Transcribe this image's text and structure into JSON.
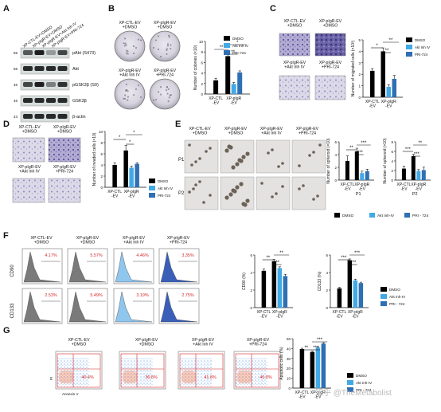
{
  "panel_labels": [
    "A",
    "B",
    "C",
    "D",
    "E",
    "F",
    "G"
  ],
  "colors": {
    "dmso": "#000000",
    "akt": "#41a9e6",
    "pri": "#2f6fb3",
    "blot_band": "#1f1f1f",
    "blot_bg": "#d6dcdc",
    "annotation_red": "#d62828"
  },
  "panel_a": {
    "lane_labels": [
      "XP-CTL-EV+DMSO",
      "XP-pIgR-EV+DMSO",
      "XP-pIgR-EV+Akt Inh IV",
      "XP-pIgR-EV+PRI-724"
    ],
    "bands": [
      "pAkt (S473)",
      "Akt",
      "pGSK3β (S9)",
      "GSK3β",
      "β-actin"
    ],
    "markers": [
      "55",
      "55",
      "46",
      "46",
      "43"
    ]
  },
  "legend": {
    "dmso": "DMSO",
    "akt": "Akt Inh IV",
    "akt_alt": "Akt Inh-IV",
    "pri": "PRI-724",
    "pri_alt": "PRI - 724"
  },
  "conditions": {
    "ctl_dmso": "XP-CTL-EV\n+DMSO",
    "pigr_dmso": "XP-pIgR-EV\n+DMSO",
    "pigr_akt": "XP-pIgR-EV\n+Akt Inh IV",
    "pigr_pri": "XP-pIgR-EV\n+PRI-724"
  },
  "group_labels": {
    "ctl": "XP-CTL\n-EV",
    "pigr": "XP-pIgR\n-EV"
  },
  "significance": {
    "two": "**",
    "one": "*",
    "three": "***"
  },
  "panel_e_rows": [
    "P1",
    "P2"
  ],
  "panel_f": {
    "markers": [
      "CD90",
      "CD133"
    ],
    "percents_cd90": [
      "4.17%",
      "5.57%",
      "4.46%",
      "3.35%"
    ],
    "percents_cd133": [
      "2.53%",
      "5.49%",
      "3.19%",
      "2.75%"
    ]
  },
  "panel_g": {
    "percents": [
      "40.4%",
      "36.8%",
      "41.8%",
      "45.8%"
    ],
    "axis_y": "PI",
    "axis_x": "Annexin V"
  },
  "watermark": "知乎 @TheMetabolist",
  "chart_data": [
    {
      "id": "B-colonies",
      "type": "bar",
      "ylabel": "Number of colonies (×10)",
      "ylim": [
        0,
        10
      ],
      "yticks": [
        0,
        2,
        4,
        6,
        8,
        10
      ],
      "groups": [
        "XP-CTL\n-EV",
        "XP-pIgR\n-EV"
      ],
      "series": [
        {
          "name": "DMSO",
          "values": [
            2.6,
            7.2
          ],
          "errors": [
            0.4,
            0.6
          ]
        },
        {
          "name": "Akt Inh IV",
          "values": [
            null,
            1.9
          ],
          "errors": [
            null,
            0.3
          ]
        },
        {
          "name": "PRI-724",
          "values": [
            null,
            4.1
          ],
          "errors": [
            null,
            0.3
          ]
        }
      ]
    },
    {
      "id": "C-migrated",
      "type": "bar",
      "ylabel": "Number of migrated cells (×10²)",
      "ylim": [
        0,
        5
      ],
      "yticks": [
        0,
        1,
        2,
        3,
        4,
        5
      ],
      "groups": [
        "XP-CTL\n-EV",
        "XP-pIgR\n-EV"
      ],
      "series": [
        {
          "name": "DMSO",
          "values": [
            2.3,
            4.0
          ],
          "errors": [
            0.2,
            0.3
          ]
        },
        {
          "name": "Akt Inh IV",
          "values": [
            null,
            0.9
          ],
          "errors": [
            null,
            0.2
          ]
        },
        {
          "name": "PRI-724",
          "values": [
            null,
            1.6
          ],
          "errors": [
            null,
            0.3
          ]
        }
      ]
    },
    {
      "id": "D-invaded",
      "type": "bar",
      "ylabel": "Number of invaded cells (×10)",
      "ylim": [
        0,
        10
      ],
      "yticks": [
        0,
        2,
        4,
        6,
        8,
        10
      ],
      "groups": [
        "XP-CTL\n-EV",
        "XP-pIgR\n-EV"
      ],
      "series": [
        {
          "name": "DMSO",
          "values": [
            4.0,
            6.6
          ],
          "errors": [
            0.4,
            0.9
          ]
        },
        {
          "name": "Akt Inh IV",
          "values": [
            null,
            3.5
          ],
          "errors": [
            null,
            0.3
          ]
        },
        {
          "name": "PRI-724",
          "values": [
            null,
            4.2
          ],
          "errors": [
            null,
            0.2
          ]
        }
      ]
    },
    {
      "id": "E-P1",
      "type": "bar",
      "xlabel": "P1",
      "ylabel": "Number of spheroid (×10)",
      "ylim": [
        0,
        6
      ],
      "yticks": [
        0,
        2,
        4,
        6
      ],
      "groups": [
        "XP-CTL\n-EV",
        "XP-pIgR\n-EV"
      ],
      "series": [
        {
          "name": "DMSO",
          "values": [
            3.0,
            4.5
          ],
          "errors": [
            0.8,
            0.5
          ]
        },
        {
          "name": "Akt Inh-IV",
          "values": [
            null,
            1.1
          ],
          "errors": [
            null,
            0.3
          ]
        },
        {
          "name": "PRI - 724",
          "values": [
            null,
            1.4
          ],
          "errors": [
            null,
            0.3
          ]
        }
      ]
    },
    {
      "id": "E-P2",
      "type": "bar",
      "xlabel": "P2",
      "ylabel": "Number of spheroid (×10)",
      "ylim": [
        0,
        8
      ],
      "yticks": [
        0,
        2,
        4,
        6,
        8
      ],
      "groups": [
        "XP-CTL\n-EV",
        "XP-pIgR\n-EV"
      ],
      "series": [
        {
          "name": "DMSO",
          "values": [
            2.4,
            5.0
          ],
          "errors": [
            0.5,
            0.4
          ]
        },
        {
          "name": "Akt Inh-IV",
          "values": [
            null,
            1.9
          ],
          "errors": [
            null,
            0.3
          ]
        },
        {
          "name": "PRI - 724",
          "values": [
            null,
            2.1
          ],
          "errors": [
            null,
            0.6
          ]
        }
      ]
    },
    {
      "id": "F-CD90",
      "type": "bar",
      "ylabel": "CD90 (%)",
      "ylim": [
        0,
        6
      ],
      "yticks": [
        0,
        2,
        4,
        6
      ],
      "groups": [
        "XP-CTL\n-EV",
        "XP-pIgR\n-EV"
      ],
      "series": [
        {
          "name": "DMSO",
          "values": [
            4.2,
            5.3
          ],
          "errors": [
            0.2,
            0.2
          ]
        },
        {
          "name": "Akt Inh-IV",
          "values": [
            null,
            4.5
          ],
          "errors": [
            null,
            0.15
          ]
        },
        {
          "name": "PRI - 724",
          "values": [
            null,
            3.6
          ],
          "errors": [
            null,
            0.2
          ]
        }
      ]
    },
    {
      "id": "F-CD133",
      "type": "bar",
      "ylabel": "CD133 (%)",
      "ylim": [
        0,
        6
      ],
      "yticks": [
        0,
        2,
        4,
        6
      ],
      "groups": [
        "XP-CTL\n-EV",
        "XP-pIgR\n-EV"
      ],
      "series": [
        {
          "name": "DMSO",
          "values": [
            2.2,
            5.4
          ],
          "errors": [
            0.1,
            0.15
          ]
        },
        {
          "name": "Akt Inh-IV",
          "values": [
            null,
            3.1
          ],
          "errors": [
            null,
            0.15
          ]
        },
        {
          "name": "PRI - 724",
          "values": [
            null,
            2.8
          ],
          "errors": [
            null,
            0.1
          ]
        }
      ]
    },
    {
      "id": "G-apoptotic",
      "type": "bar",
      "ylabel": "Apoptotic cells (%)",
      "ylim": [
        0,
        50
      ],
      "yticks": [
        0,
        10,
        20,
        30,
        40,
        50
      ],
      "groups": [
        "XP-CTL\n-EV",
        "XP-pIgR\n-EV"
      ],
      "series": [
        {
          "name": "DMSO",
          "values": [
            39.5,
            36.5
          ],
          "errors": [
            0.8,
            0.7
          ]
        },
        {
          "name": "Akt Inh-IV",
          "values": [
            null,
            41.0
          ],
          "errors": [
            null,
            0.8
          ]
        },
        {
          "name": "PRI - 724",
          "values": [
            null,
            45.0
          ],
          "errors": [
            null,
            0.9
          ]
        }
      ]
    }
  ]
}
